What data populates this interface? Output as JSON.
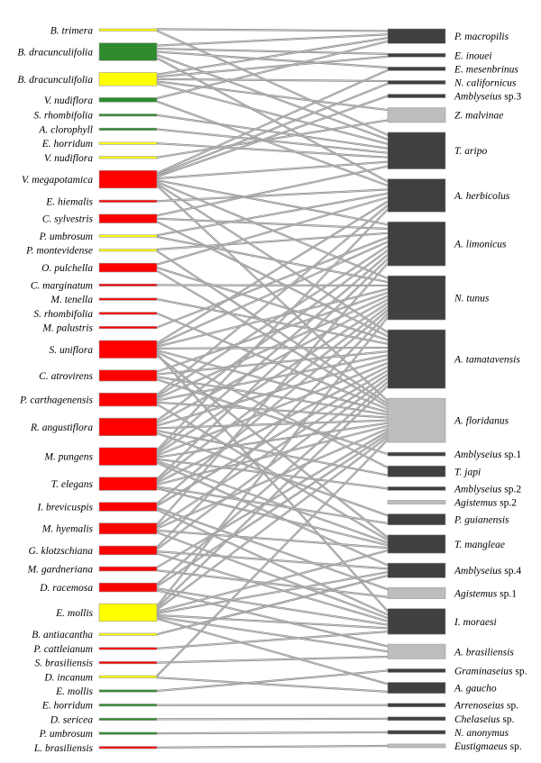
{
  "colors": {
    "green": "#2e8b2e",
    "yellow": "#ffff00",
    "red": "#ff0000",
    "dark": "#404040",
    "light": "#bdbdbd",
    "link": "#8c8c8c"
  },
  "plants": [
    {
      "genus": "B.",
      "epithet": "trimera",
      "color": "yellow",
      "weight": 1
    },
    {
      "genus": "B.",
      "epithet": "dracunculifolia",
      "color": "green",
      "weight": 8
    },
    {
      "genus": "B.",
      "epithet": "dracunculifolia",
      "color": "yellow",
      "weight": 6
    },
    {
      "genus": "V.",
      "epithet": "nudiflora",
      "color": "green",
      "weight": 2
    },
    {
      "genus": "S.",
      "epithet": "rhombifolia",
      "color": "green",
      "weight": 1
    },
    {
      "genus": "A.",
      "epithet": "clorophyll",
      "color": "green",
      "weight": 1
    },
    {
      "genus": "E.",
      "epithet": "horridum",
      "color": "yellow",
      "weight": 1
    },
    {
      "genus": "V.",
      "epithet": "nudiflora",
      "color": "yellow",
      "weight": 1
    },
    {
      "genus": "V.",
      "epithet": "megapotamica",
      "color": "red",
      "weight": 8
    },
    {
      "genus": "E.",
      "epithet": "hiemalis",
      "color": "red",
      "weight": 1
    },
    {
      "genus": "C.",
      "epithet": "sylvestris",
      "color": "red",
      "weight": 4
    },
    {
      "genus": "P.",
      "epithet": "umbrosum",
      "color": "yellow",
      "weight": 1
    },
    {
      "genus": "P.",
      "epithet": "montevidense",
      "color": "yellow",
      "weight": 1
    },
    {
      "genus": "O.",
      "epithet": "pulchella",
      "color": "red",
      "weight": 4
    },
    {
      "genus": "C.",
      "epithet": "marginatum",
      "color": "red",
      "weight": 1
    },
    {
      "genus": "M.",
      "epithet": "tenella",
      "color": "red",
      "weight": 1
    },
    {
      "genus": "S.",
      "epithet": "rhombifolia",
      "color": "red",
      "weight": 1
    },
    {
      "genus": "M.",
      "epithet": "palustris",
      "color": "red",
      "weight": 1
    },
    {
      "genus": "S.",
      "epithet": "uniflora",
      "color": "red",
      "weight": 8
    },
    {
      "genus": "C.",
      "epithet": "atrovirens",
      "color": "red",
      "weight": 5
    },
    {
      "genus": "P.",
      "epithet": "carthagenensis",
      "color": "red",
      "weight": 6
    },
    {
      "genus": "R.",
      "epithet": "angustiflora",
      "color": "red",
      "weight": 8
    },
    {
      "genus": "M.",
      "epithet": "pungens",
      "color": "red",
      "weight": 8
    },
    {
      "genus": "T.",
      "epithet": "elegans",
      "color": "red",
      "weight": 6
    },
    {
      "genus": "I.",
      "epithet": "brevicuspis",
      "color": "red",
      "weight": 4
    },
    {
      "genus": "M.",
      "epithet": "hyemalis",
      "color": "red",
      "weight": 5
    },
    {
      "genus": "G.",
      "epithet": "klotzschiana",
      "color": "red",
      "weight": 4
    },
    {
      "genus": "M.",
      "epithet": "gardneriana",
      "color": "red",
      "weight": 2
    },
    {
      "genus": "D.",
      "epithet": "racemosa",
      "color": "red",
      "weight": 4
    },
    {
      "genus": "E.",
      "epithet": "mollis",
      "color": "yellow",
      "weight": 8
    },
    {
      "genus": "B.",
      "epithet": "antiacantha",
      "color": "yellow",
      "weight": 1
    },
    {
      "genus": "P.",
      "epithet": "cattleianum",
      "color": "red",
      "weight": 1
    },
    {
      "genus": "S.",
      "epithet": "brasiliensis",
      "color": "red",
      "weight": 1
    },
    {
      "genus": "D.",
      "epithet": "incanum",
      "color": "yellow",
      "weight": 1
    },
    {
      "genus": "E.",
      "epithet": "mollis",
      "color": "green",
      "weight": 1
    },
    {
      "genus": "E.",
      "epithet": "horridum",
      "color": "green",
      "weight": 1
    },
    {
      "genus": "D.",
      "epithet": "sericea",
      "color": "green",
      "weight": 1
    },
    {
      "genus": "P.",
      "epithet": "umbrosum",
      "color": "green",
      "weight": 1
    },
    {
      "genus": "L.",
      "epithet": "brasiliensis",
      "color": "red",
      "weight": 1
    }
  ],
  "mites": [
    {
      "genus": "P.",
      "epithet": "macropilis",
      "suffix": "",
      "color": "dark",
      "weight": 4
    },
    {
      "genus": "E.",
      "epithet": "inouei",
      "suffix": "",
      "color": "dark",
      "weight": 1
    },
    {
      "genus": "E.",
      "epithet": "mesenbrinus",
      "suffix": "",
      "color": "dark",
      "weight": 1
    },
    {
      "genus": "N.",
      "epithet": "californicus",
      "suffix": "",
      "color": "dark",
      "weight": 1
    },
    {
      "genus": "Amblyseius",
      "epithet": "",
      "suffix": "sp.3",
      "color": "dark",
      "weight": 1
    },
    {
      "genus": "Z.",
      "epithet": "malvinae",
      "suffix": "",
      "color": "light",
      "weight": 4
    },
    {
      "genus": "T.",
      "epithet": "aripo",
      "suffix": "",
      "color": "dark",
      "weight": 10
    },
    {
      "genus": "A.",
      "epithet": "herbicolus",
      "suffix": "",
      "color": "dark",
      "weight": 9
    },
    {
      "genus": "A.",
      "epithet": "limonicus",
      "suffix": "",
      "color": "dark",
      "weight": 12
    },
    {
      "genus": "N.",
      "epithet": "tunus",
      "suffix": "",
      "color": "dark",
      "weight": 12
    },
    {
      "genus": "A.",
      "epithet": "tamatavensis",
      "suffix": "",
      "color": "dark",
      "weight": 16
    },
    {
      "genus": "A.",
      "epithet": "floridanus",
      "suffix": "",
      "color": "light",
      "weight": 12
    },
    {
      "genus": "Amblyseius",
      "epithet": "",
      "suffix": "sp.1",
      "color": "dark",
      "weight": 1
    },
    {
      "genus": "T.",
      "epithet": "japi",
      "suffix": "",
      "color": "dark",
      "weight": 3
    },
    {
      "genus": "Amblyseius",
      "epithet": "",
      "suffix": "sp.2",
      "color": "dark",
      "weight": 1
    },
    {
      "genus": "Agistemus",
      "epithet": "",
      "suffix": "sp.2",
      "color": "light",
      "weight": 1
    },
    {
      "genus": "P.",
      "epithet": "guianensis",
      "suffix": "",
      "color": "dark",
      "weight": 3
    },
    {
      "genus": "T.",
      "epithet": "mangleae",
      "suffix": "",
      "color": "dark",
      "weight": 5
    },
    {
      "genus": "Amblyseius",
      "epithet": "",
      "suffix": "sp.4",
      "color": "dark",
      "weight": 4
    },
    {
      "genus": "Agistemus",
      "epithet": "",
      "suffix": "sp.1",
      "color": "light",
      "weight": 3
    },
    {
      "genus": "I.",
      "epithet": "moraesi",
      "suffix": "",
      "color": "dark",
      "weight": 7
    },
    {
      "genus": "A.",
      "epithet": "brasiliensis",
      "suffix": "",
      "color": "light",
      "weight": 4
    },
    {
      "genus": "Graminaseius",
      "epithet": "",
      "suffix": "sp.",
      "color": "dark",
      "weight": 1
    },
    {
      "genus": "A.",
      "epithet": "gaucho",
      "suffix": "",
      "color": "dark",
      "weight": 3
    },
    {
      "genus": "Arrenoseius",
      "epithet": "",
      "suffix": "sp.",
      "color": "dark",
      "weight": 1
    },
    {
      "genus": "Chelaseius",
      "epithet": "",
      "suffix": "sp.",
      "color": "dark",
      "weight": 1
    },
    {
      "genus": "N.",
      "epithet": "anonymus",
      "suffix": "",
      "color": "dark",
      "weight": 1
    },
    {
      "genus": "Eustigmaeus",
      "epithet": "",
      "suffix": "sp.",
      "color": "light",
      "weight": 1
    }
  ],
  "links": [
    [
      0,
      0
    ],
    [
      0,
      6
    ],
    [
      1,
      0
    ],
    [
      1,
      1
    ],
    [
      1,
      2
    ],
    [
      1,
      6
    ],
    [
      1,
      7
    ],
    [
      2,
      0
    ],
    [
      2,
      1
    ],
    [
      2,
      3
    ],
    [
      2,
      5
    ],
    [
      2,
      6
    ],
    [
      3,
      0
    ],
    [
      3,
      7
    ],
    [
      4,
      6
    ],
    [
      5,
      6
    ],
    [
      6,
      6
    ],
    [
      7,
      5
    ],
    [
      8,
      2
    ],
    [
      8,
      3
    ],
    [
      8,
      4
    ],
    [
      8,
      6
    ],
    [
      8,
      8
    ],
    [
      8,
      9
    ],
    [
      8,
      10
    ],
    [
      8,
      11
    ],
    [
      9,
      7
    ],
    [
      10,
      6
    ],
    [
      10,
      8
    ],
    [
      10,
      10
    ],
    [
      11,
      7
    ],
    [
      11,
      9
    ],
    [
      12,
      8
    ],
    [
      12,
      11
    ],
    [
      13,
      7
    ],
    [
      13,
      10
    ],
    [
      13,
      11
    ],
    [
      14,
      9
    ],
    [
      15,
      10
    ],
    [
      16,
      11
    ],
    [
      17,
      8
    ],
    [
      18,
      7
    ],
    [
      18,
      8
    ],
    [
      18,
      9
    ],
    [
      18,
      10
    ],
    [
      18,
      11
    ],
    [
      18,
      13
    ],
    [
      18,
      20
    ],
    [
      18,
      17
    ],
    [
      19,
      9
    ],
    [
      19,
      10
    ],
    [
      19,
      11
    ],
    [
      19,
      12
    ],
    [
      20,
      7
    ],
    [
      20,
      8
    ],
    [
      20,
      9
    ],
    [
      20,
      10
    ],
    [
      20,
      11
    ],
    [
      20,
      17
    ],
    [
      21,
      8
    ],
    [
      21,
      9
    ],
    [
      21,
      10
    ],
    [
      21,
      11
    ],
    [
      21,
      13
    ],
    [
      21,
      16
    ],
    [
      22,
      7
    ],
    [
      22,
      8
    ],
    [
      22,
      9
    ],
    [
      22,
      10
    ],
    [
      22,
      11
    ],
    [
      22,
      14
    ],
    [
      22,
      17
    ],
    [
      22,
      18
    ],
    [
      23,
      8
    ],
    [
      23,
      9
    ],
    [
      23,
      10
    ],
    [
      23,
      11
    ],
    [
      23,
      16
    ],
    [
      23,
      17
    ],
    [
      24,
      9
    ],
    [
      24,
      10
    ],
    [
      24,
      19
    ],
    [
      24,
      20
    ],
    [
      25,
      8
    ],
    [
      25,
      10
    ],
    [
      25,
      11
    ],
    [
      25,
      17
    ],
    [
      25,
      20
    ],
    [
      26,
      9
    ],
    [
      26,
      10
    ],
    [
      26,
      18
    ],
    [
      26,
      20
    ],
    [
      27,
      11
    ],
    [
      27,
      19
    ],
    [
      28,
      10
    ],
    [
      28,
      11
    ],
    [
      28,
      20
    ],
    [
      28,
      21
    ],
    [
      29,
      9
    ],
    [
      29,
      10
    ],
    [
      29,
      11
    ],
    [
      29,
      17
    ],
    [
      29,
      18
    ],
    [
      29,
      20
    ],
    [
      29,
      21
    ],
    [
      29,
      23
    ],
    [
      30,
      18
    ],
    [
      31,
      20
    ],
    [
      32,
      21
    ],
    [
      33,
      11
    ],
    [
      33,
      23
    ],
    [
      34,
      22
    ],
    [
      35,
      24
    ],
    [
      36,
      25
    ],
    [
      37,
      26
    ],
    [
      38,
      27
    ]
  ]
}
